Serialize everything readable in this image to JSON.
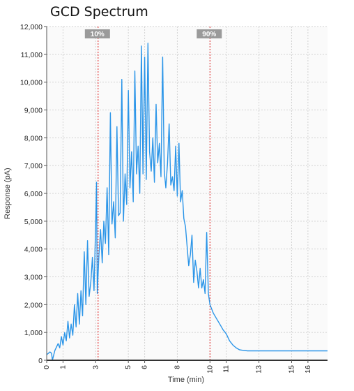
{
  "title": "GCD Spectrum",
  "chart_data": {
    "type": "line",
    "title": "GCD Spectrum",
    "xlabel": "Time (min)",
    "ylabel": "Response (pA)",
    "xlim": [
      0,
      17.2
    ],
    "ylim": [
      0,
      12000
    ],
    "x_ticks": [
      0,
      1,
      3,
      5,
      6,
      8,
      10,
      11,
      13,
      15,
      16
    ],
    "y_ticks": [
      0,
      1000,
      2000,
      3000,
      4000,
      5000,
      6000,
      7000,
      8000,
      9000,
      10000,
      11000,
      12000
    ],
    "x_tick_labels": [
      "0",
      "1",
      "3",
      "5",
      "6",
      "8",
      "10",
      "11",
      "13",
      "15",
      "16"
    ],
    "y_tick_labels": [
      "0",
      "1,000",
      "2,000",
      "3,000",
      "4,000",
      "5,000",
      "6,000",
      "7,000",
      "8,000",
      "9,000",
      "10,000",
      "11,000",
      "12,000"
    ],
    "grid": true,
    "line_color": "#2b95e8",
    "marker_color": "#e02020",
    "markers": [
      {
        "label": "10%",
        "x": 3.15
      },
      {
        "label": "90%",
        "x": 10.0
      }
    ],
    "series": [
      {
        "x": [
          0.0,
          0.2,
          0.3,
          0.35,
          0.5,
          0.7,
          0.8,
          0.9,
          1.0,
          1.1,
          1.2,
          1.3,
          1.4,
          1.5,
          1.6,
          1.7,
          1.8,
          1.9,
          2.0,
          2.1,
          2.2,
          2.3,
          2.4,
          2.5,
          2.6,
          2.7,
          2.8,
          2.9,
          3.0,
          3.05,
          3.1,
          3.2,
          3.3,
          3.4,
          3.5,
          3.6,
          3.7,
          3.8,
          3.9,
          4.0,
          4.1,
          4.2,
          4.3,
          4.4,
          4.5,
          4.6,
          4.7,
          4.8,
          4.9,
          5.0,
          5.1,
          5.2,
          5.3,
          5.4,
          5.5,
          5.6,
          5.7,
          5.8,
          5.9,
          6.0,
          6.1,
          6.2,
          6.3,
          6.4,
          6.5,
          6.6,
          6.7,
          6.8,
          6.9,
          7.0,
          7.1,
          7.2,
          7.3,
          7.4,
          7.5,
          7.6,
          7.7,
          7.8,
          7.9,
          8.0,
          8.1,
          8.2,
          8.3,
          8.4,
          8.5,
          8.6,
          8.7,
          8.8,
          8.9,
          9.0,
          9.1,
          9.2,
          9.3,
          9.4,
          9.5,
          9.6,
          9.7,
          9.8,
          9.9,
          10.0,
          10.2,
          10.4,
          10.6,
          10.8,
          11.0,
          11.2,
          11.4,
          11.6,
          11.8,
          12.0,
          12.3,
          12.6,
          13.0,
          14.0,
          15.0,
          16.0,
          17.2
        ],
        "y": [
          200,
          300,
          250,
          0,
          350,
          600,
          450,
          850,
          550,
          1000,
          700,
          1400,
          800,
          1300,
          900,
          2000,
          1200,
          2400,
          1300,
          2500,
          1600,
          3900,
          2000,
          4300,
          2300,
          2800,
          3700,
          2500,
          4900,
          6400,
          2400,
          3800,
          4700,
          3500,
          5000,
          4200,
          6200,
          3800,
          8900,
          4900,
          5700,
          4400,
          8400,
          5200,
          5300,
          10100,
          5000,
          6700,
          5600,
          9700,
          6200,
          7500,
          5700,
          10400,
          6700,
          7700,
          6000,
          11300,
          6700,
          10900,
          6500,
          11400,
          7500,
          6800,
          8000,
          6400,
          9200,
          7100,
          7800,
          6600,
          10900,
          6800,
          6200,
          7100,
          8500,
          6300,
          6600,
          6100,
          7700,
          5900,
          7800,
          5700,
          6100,
          5100,
          4800,
          4100,
          3400,
          3800,
          4500,
          2800,
          3600,
          3200,
          2600,
          3300,
          2600,
          2900,
          2400,
          4600,
          2400,
          2000,
          1700,
          1500,
          1300,
          1100,
          950,
          700,
          550,
          450,
          380,
          360,
          340,
          340,
          340,
          340,
          340,
          340,
          340
        ]
      }
    ]
  }
}
